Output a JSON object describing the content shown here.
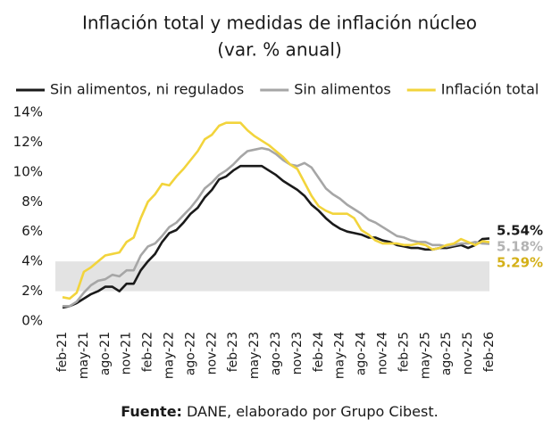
{
  "chart_data": {
    "type": "line",
    "title": "Inflación total y medidas de inflación núcleo",
    "subtitle": "(var. % anual)",
    "source_label": "Fuente:",
    "source": "DANE, elaborado por Grupo Cibest.",
    "categories": [
      "feb-21",
      null,
      null,
      "may-21",
      null,
      null,
      "ago-21",
      null,
      null,
      "nov-21",
      null,
      null,
      "feb-22",
      null,
      null,
      "may-22",
      null,
      null,
      "ago-22",
      null,
      null,
      "nov-22",
      null,
      null,
      "feb-23",
      null,
      null,
      "may-23",
      null,
      null,
      "ago-23",
      null,
      null,
      "nov-23",
      null,
      null,
      "feb-24",
      null,
      null,
      "may-24",
      null,
      null,
      "ago-24",
      null,
      null,
      "nov-24",
      null,
      null,
      "feb-25",
      null,
      null,
      "may-25",
      null,
      null,
      "ago-25",
      null,
      null,
      "nov-25",
      null,
      null,
      "feb-26"
    ],
    "ylim": [
      0,
      14
    ],
    "yticks": [
      {
        "value": 0,
        "label": "0%"
      },
      {
        "value": 2,
        "label": "2%"
      },
      {
        "value": 4,
        "label": "4%"
      },
      {
        "value": 6,
        "label": "6%"
      },
      {
        "value": 8,
        "label": "8%"
      },
      {
        "value": 10,
        "label": "10%"
      },
      {
        "value": 12,
        "label": "12%"
      },
      {
        "value": 14,
        "label": "14%"
      }
    ],
    "target_band": [
      2,
      4
    ],
    "band_color": "#e3e3e3",
    "series": [
      {
        "name": "Sin alimentos, ni regulados",
        "color": "#1a1a1a",
        "label_color": "#1a1a1a",
        "values": [
          0.9,
          1.0,
          1.2,
          1.5,
          1.8,
          2.0,
          2.3,
          2.3,
          2.0,
          2.5,
          2.5,
          3.4,
          4.0,
          4.5,
          5.3,
          5.9,
          6.1,
          6.6,
          7.2,
          7.6,
          8.3,
          8.8,
          9.5,
          9.7,
          10.1,
          10.4,
          10.4,
          10.4,
          10.4,
          10.1,
          9.8,
          9.4,
          9.1,
          8.8,
          8.4,
          7.8,
          7.4,
          6.9,
          6.5,
          6.2,
          6.0,
          5.9,
          5.8,
          5.6,
          5.6,
          5.4,
          5.3,
          5.1,
          5.0,
          4.9,
          4.9,
          4.8,
          4.8,
          4.9,
          4.9,
          5.0,
          5.1,
          4.9,
          5.1,
          5.5,
          5.54
        ],
        "value_labels": [
          null,
          null,
          null,
          null,
          null,
          null,
          null,
          null,
          null,
          null,
          null,
          null,
          null,
          null,
          null,
          null,
          null,
          null,
          null,
          null,
          null,
          null,
          null,
          null,
          null,
          null,
          null,
          null,
          null,
          null,
          null,
          null,
          null,
          null,
          null,
          null,
          null,
          null,
          null,
          null,
          null,
          null,
          null,
          null,
          null,
          null,
          null,
          null,
          null,
          null,
          null,
          null,
          null,
          null,
          null,
          null,
          null,
          null,
          null,
          null,
          "5.54%"
        ]
      },
      {
        "name": "Sin alimentos",
        "color": "#a6a6a6",
        "label_color": "#b3b3b3",
        "values": [
          1.0,
          1.0,
          1.3,
          1.9,
          2.4,
          2.7,
          2.8,
          3.1,
          3.0,
          3.4,
          3.4,
          4.4,
          5.0,
          5.2,
          5.7,
          6.3,
          6.6,
          7.1,
          7.6,
          8.2,
          8.9,
          9.3,
          9.8,
          10.1,
          10.5,
          11.0,
          11.4,
          11.5,
          11.6,
          11.5,
          11.2,
          10.8,
          10.5,
          10.4,
          10.6,
          10.3,
          9.6,
          8.9,
          8.5,
          8.2,
          7.8,
          7.5,
          7.2,
          6.8,
          6.6,
          6.3,
          6.0,
          5.7,
          5.6,
          5.4,
          5.3,
          5.3,
          5.1,
          5.1,
          5.0,
          5.1,
          5.2,
          5.2,
          5.3,
          5.2,
          5.18
        ],
        "value_labels": [
          null,
          null,
          null,
          null,
          null,
          null,
          null,
          null,
          null,
          null,
          null,
          null,
          null,
          null,
          null,
          null,
          null,
          null,
          null,
          null,
          null,
          null,
          null,
          null,
          null,
          null,
          null,
          null,
          null,
          null,
          null,
          null,
          null,
          null,
          null,
          null,
          null,
          null,
          null,
          null,
          null,
          null,
          null,
          null,
          null,
          null,
          null,
          null,
          null,
          null,
          null,
          null,
          null,
          null,
          null,
          null,
          null,
          null,
          null,
          null,
          "5.18%"
        ]
      },
      {
        "name": "Inflación total",
        "color": "#f2d43c",
        "label_color": "#d4b018",
        "values": [
          1.6,
          1.5,
          1.9,
          3.3,
          3.6,
          4.0,
          4.4,
          4.5,
          4.6,
          5.3,
          5.6,
          6.9,
          8.0,
          8.5,
          9.2,
          9.1,
          9.7,
          10.2,
          10.8,
          11.4,
          12.2,
          12.5,
          13.1,
          13.3,
          13.3,
          13.3,
          12.8,
          12.4,
          12.1,
          11.8,
          11.4,
          11.0,
          10.5,
          10.2,
          9.3,
          8.4,
          7.7,
          7.4,
          7.2,
          7.2,
          7.2,
          6.9,
          6.1,
          5.8,
          5.4,
          5.2,
          5.2,
          5.2,
          5.1,
          5.1,
          5.2,
          5.1,
          4.8,
          4.9,
          5.1,
          5.2,
          5.5,
          5.3,
          5.1,
          5.35,
          5.29
        ],
        "value_labels": [
          null,
          null,
          null,
          null,
          null,
          null,
          null,
          null,
          null,
          null,
          null,
          null,
          null,
          null,
          null,
          null,
          null,
          null,
          null,
          null,
          null,
          null,
          null,
          null,
          null,
          null,
          null,
          null,
          null,
          null,
          null,
          null,
          null,
          null,
          null,
          null,
          null,
          null,
          null,
          null,
          null,
          null,
          null,
          null,
          null,
          null,
          null,
          null,
          null,
          null,
          null,
          null,
          null,
          null,
          null,
          null,
          null,
          null,
          null,
          null,
          "5.29%"
        ]
      }
    ]
  }
}
